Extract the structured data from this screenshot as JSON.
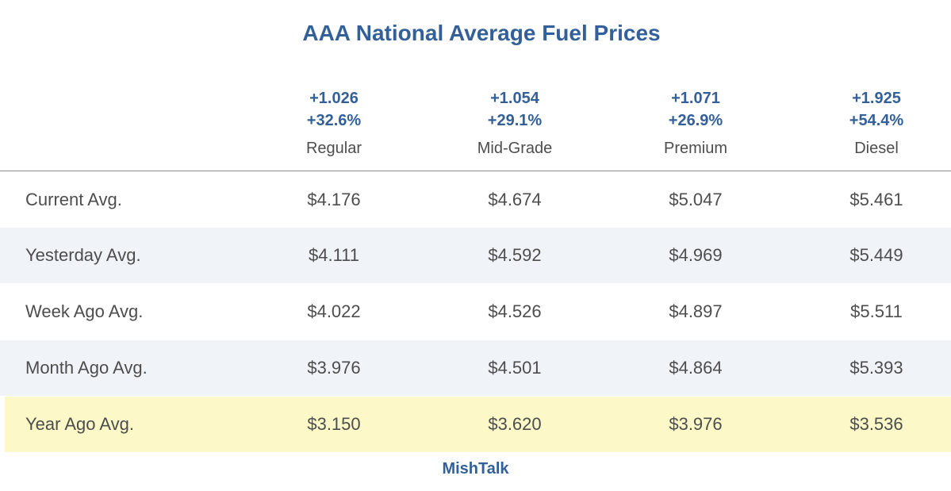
{
  "chart_data": {
    "type": "table",
    "title": "AAA National Average Fuel Prices",
    "columns": [
      {
        "name": "Regular",
        "change_abs": "+1.026",
        "change_pct": "+32.6%"
      },
      {
        "name": "Mid-Grade",
        "change_abs": "+1.054",
        "change_pct": "+29.1%"
      },
      {
        "name": "Premium",
        "change_abs": "+1.071",
        "change_pct": "+26.9%"
      },
      {
        "name": "Diesel",
        "change_abs": "+1.925",
        "change_pct": "+54.4%"
      }
    ],
    "rows": [
      {
        "label": "Current Avg.",
        "values": [
          "$4.176",
          "$4.674",
          "$5.047",
          "$5.461"
        ]
      },
      {
        "label": "Yesterday Avg.",
        "values": [
          "$4.111",
          "$4.592",
          "$4.969",
          "$5.449"
        ]
      },
      {
        "label": "Week Ago Avg.",
        "values": [
          "$4.022",
          "$4.526",
          "$4.897",
          "$5.511"
        ]
      },
      {
        "label": "Month Ago Avg.",
        "values": [
          "$3.976",
          "$4.501",
          "$4.864",
          "$5.393"
        ]
      },
      {
        "label": "Year Ago Avg.",
        "values": [
          "$3.150",
          "$3.620",
          "$3.976",
          "$3.536"
        ]
      }
    ],
    "highlight_row": "Year Ago Avg.",
    "footer": "MishTalk",
    "colors": {
      "title": "#34609a",
      "text": "#4d4d4d",
      "alt_row": "#f0f4f9",
      "highlight_row": "#fdf8c8"
    }
  }
}
